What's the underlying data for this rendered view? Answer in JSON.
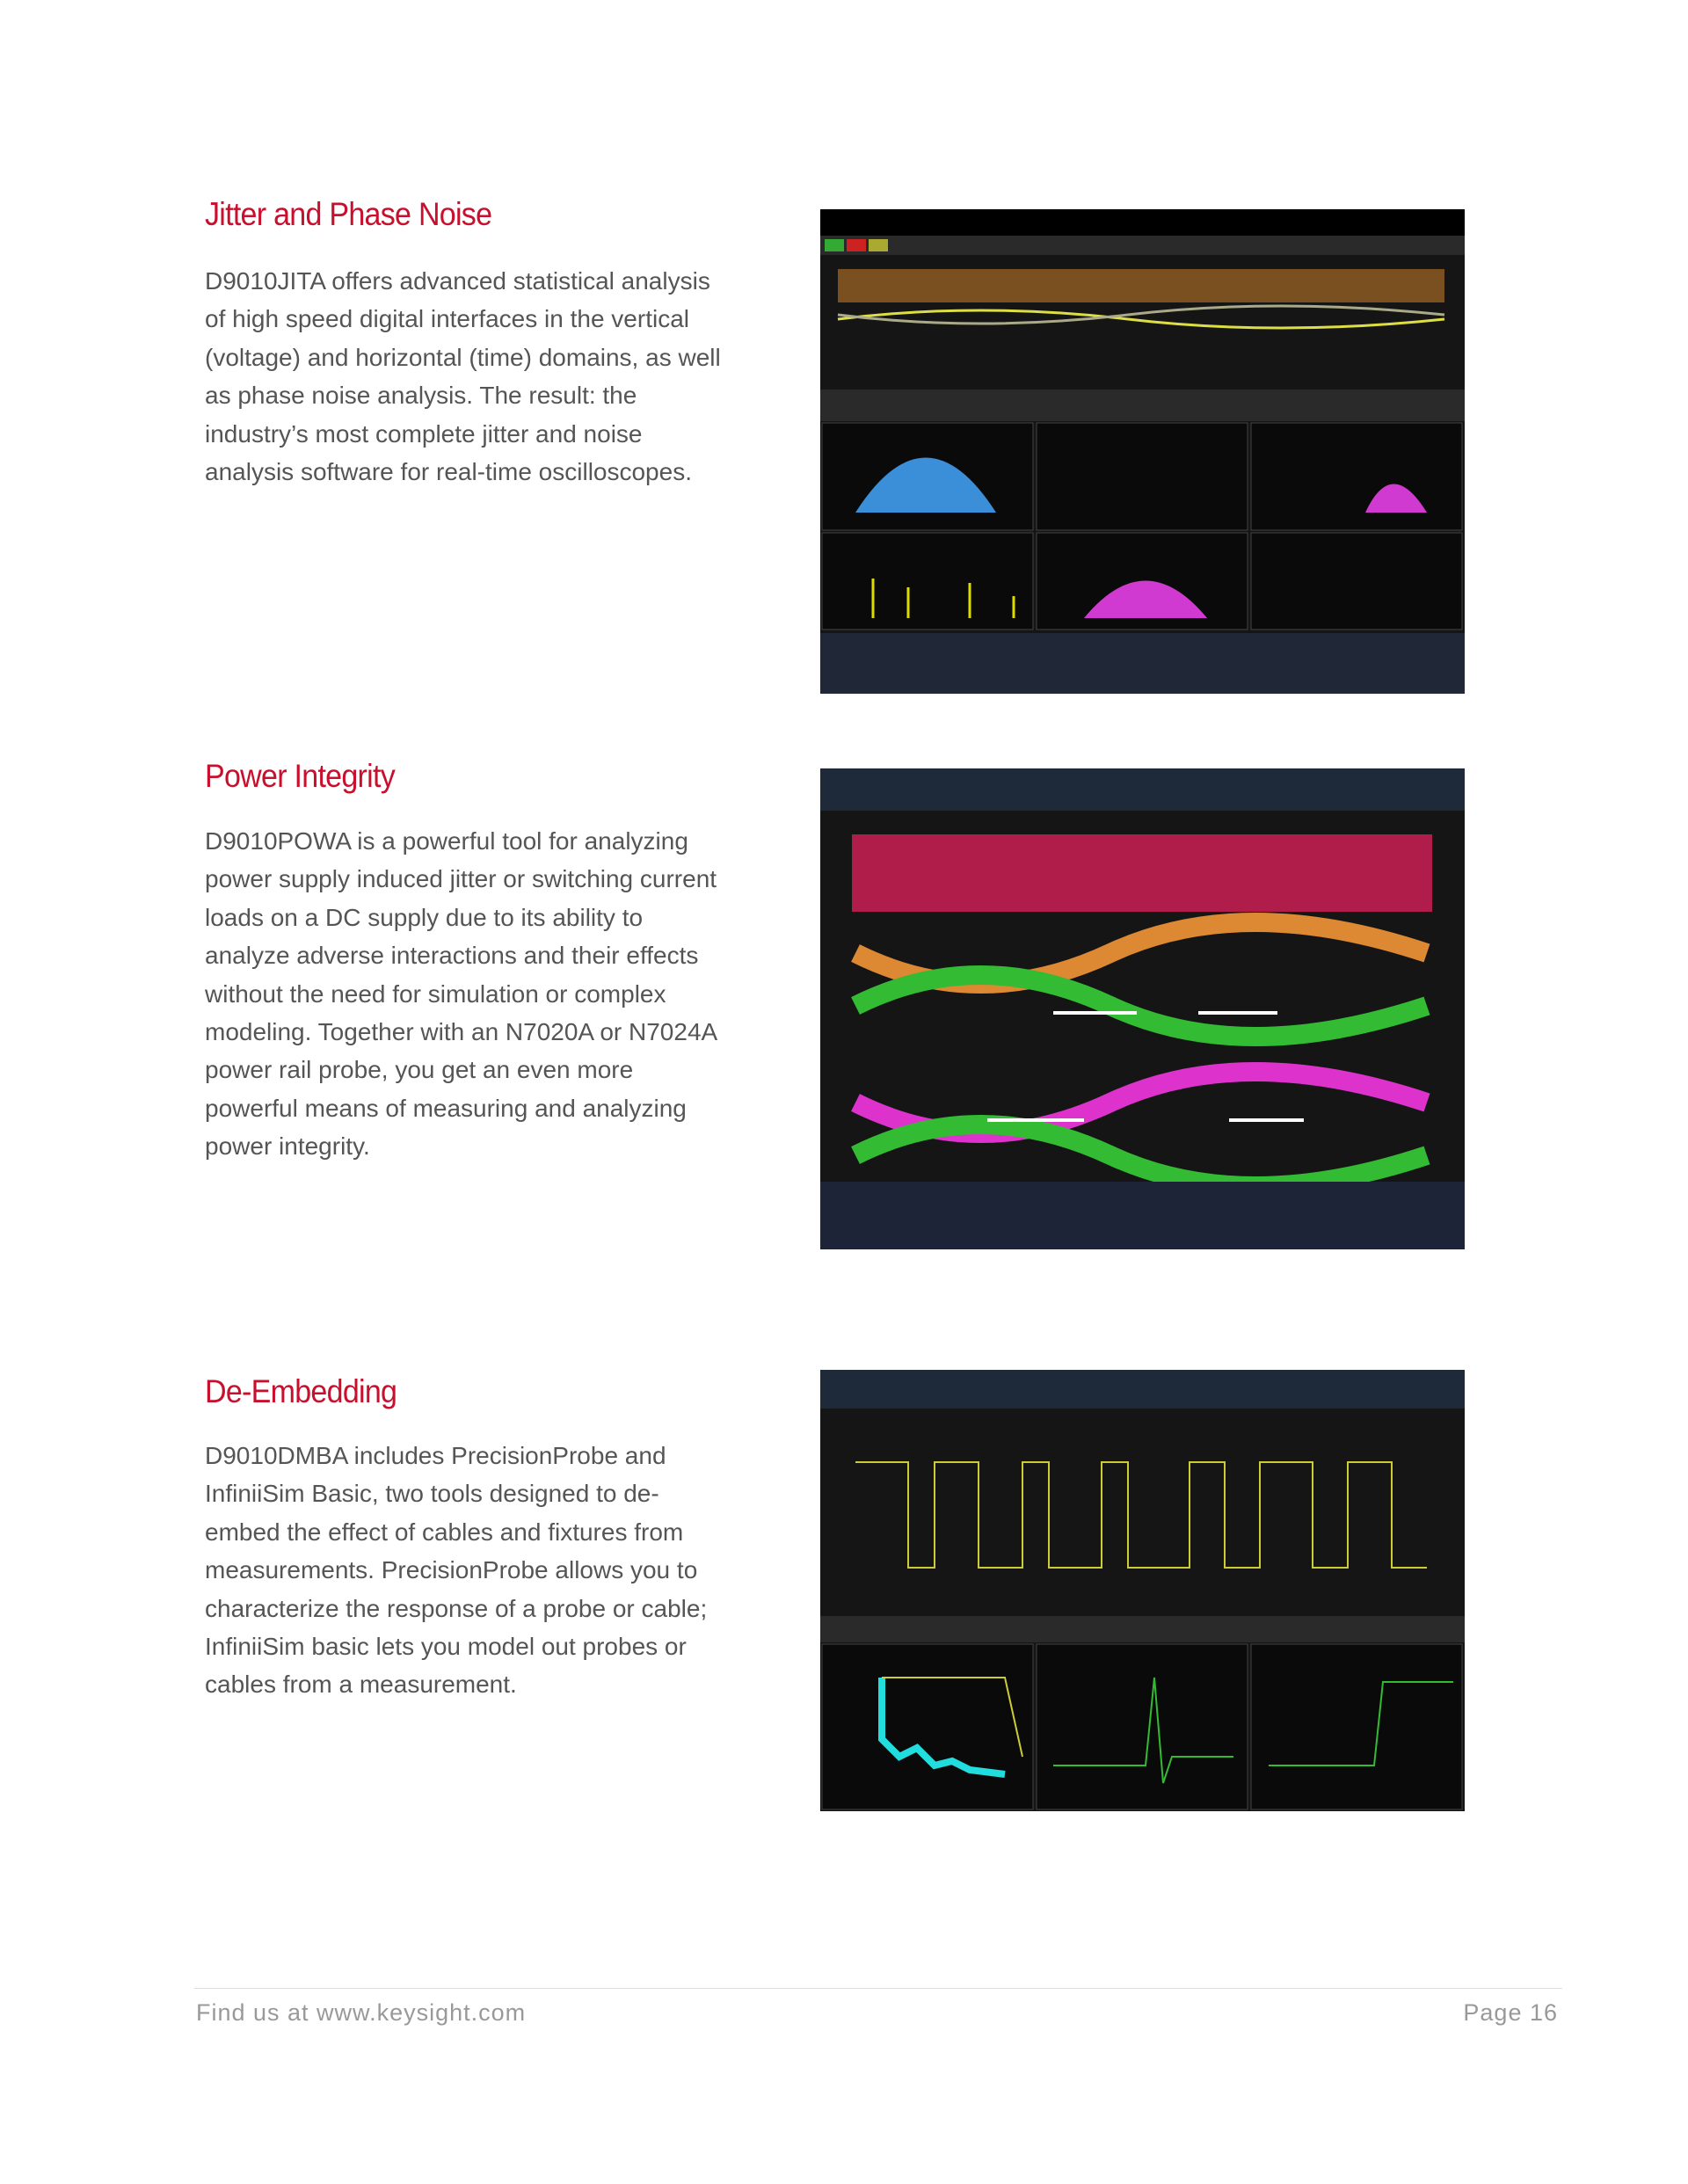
{
  "sections": [
    {
      "heading": "Jitter and Phase Noise",
      "lines": [
        "D9010JITA offers advanced statistical analysis",
        "of high speed digital interfaces in the vertical",
        "(voltage) and horizontal (time) domains, as well",
        "as phase noise analysis. The result: the",
        "industry’s most complete jitter and noise",
        "analysis software for real-time oscilloscopes."
      ]
    },
    {
      "heading": "Power Integrity",
      "lines": [
        "D9010POWA is a powerful tool for analyzing",
        "power supply induced jitter or switching current",
        "loads on a DC supply due to its ability to",
        "analyze adverse interactions and their effects",
        "without the need for simulation or complex",
        "modeling. Together with an N7020A or N7024A",
        "power rail probe, you get an even more",
        "powerful means of measuring and analyzing",
        "power integrity."
      ]
    },
    {
      "heading": "De-Embedding",
      "lines": [
        "D9010DMBA includes PrecisionProbe and",
        "InfiniiSim Basic, two tools designed to de-",
        "embed the effect of cables and fixtures from",
        "measurements. PrecisionProbe allows you to",
        "characterize the response of a probe or cable;",
        "InfiniiSim basic lets you model out probes or",
        "cables from a measurement."
      ]
    }
  ],
  "footer": {
    "left": "Find us at www.keysight.com",
    "right": "Page 16"
  }
}
